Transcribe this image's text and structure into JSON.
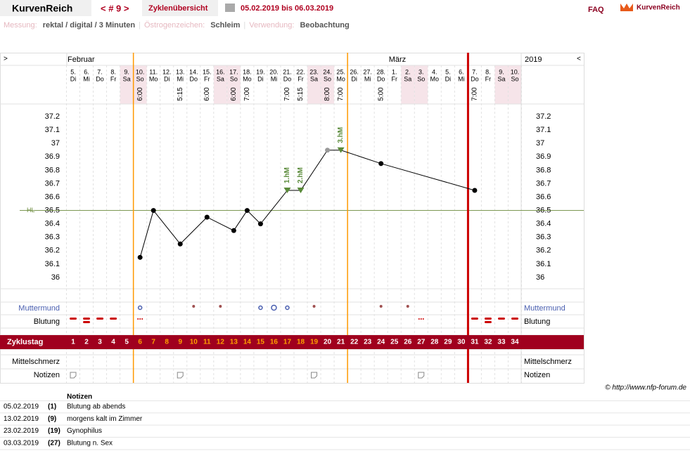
{
  "header": {
    "brand": "KurvenReich",
    "cycle": "< # 9 >",
    "overview": "Zyklenübersicht",
    "range": "05.02.2019 bis 06.03.2019",
    "faq": "FAQ",
    "logo": "KurvenReich"
  },
  "info": [
    {
      "label": "Messung:",
      "value": "rektal / digital / 3 Minuten"
    },
    {
      "label": "Östrogenzeichen:",
      "value": "Schleim"
    },
    {
      "label": "Verwendung:",
      "value": "Beobachtung"
    }
  ],
  "separator": "|",
  "nav": {
    "left": ">",
    "right": "<",
    "year": "2019"
  },
  "chart_data": {
    "type": "line",
    "months": [
      {
        "label": "Februar",
        "day": 1
      },
      {
        "label": "März",
        "day": 25
      }
    ],
    "categories": [
      "5.",
      "6.",
      "7.",
      "8.",
      "9.",
      "10.",
      "11.",
      "12.",
      "13.",
      "14.",
      "15.",
      "16.",
      "17.",
      "18.",
      "19.",
      "20.",
      "21.",
      "22.",
      "23.",
      "24.",
      "25.",
      "26.",
      "27.",
      "28.",
      "1.",
      "2.",
      "3.",
      "4.",
      "5.",
      "6.",
      "7.",
      "8.",
      "9.",
      "10."
    ],
    "weekdays": [
      "Di",
      "Mi",
      "Do",
      "Fr",
      "Sa",
      "So",
      "Mo",
      "Di",
      "Mi",
      "Do",
      "Fr",
      "Sa",
      "So",
      "Mo",
      "Di",
      "Mi",
      "Do",
      "Fr",
      "Sa",
      "So",
      "Mo",
      "Di",
      "Mi",
      "Do",
      "Fr",
      "Sa",
      "So",
      "Mo",
      "Di",
      "Mi",
      "Do",
      "Fr",
      "Sa",
      "So"
    ],
    "times": [
      null,
      null,
      null,
      null,
      null,
      "6:00",
      null,
      null,
      "5:15",
      null,
      "6:00",
      null,
      "6:00",
      "7:00",
      null,
      null,
      "7:00",
      "5:15",
      null,
      "8:00",
      "7:00",
      null,
      null,
      "5:00",
      null,
      null,
      null,
      null,
      null,
      null,
      "7:00",
      null,
      null,
      null
    ],
    "values": [
      null,
      null,
      null,
      null,
      null,
      36.15,
      36.5,
      null,
      36.25,
      null,
      36.45,
      null,
      36.35,
      36.5,
      36.4,
      null,
      36.65,
      36.65,
      null,
      36.95,
      36.95,
      null,
      null,
      36.85,
      null,
      null,
      null,
      null,
      null,
      null,
      36.65,
      null,
      null,
      null
    ],
    "ylim": [
      35.9,
      37.3
    ],
    "yticks": [
      36,
      36.1,
      36.2,
      36.3,
      36.4,
      36.5,
      36.6,
      36.7,
      36.8,
      36.9,
      37,
      37.1,
      37.2
    ],
    "grid": false,
    "color": "#000000",
    "excluded_days": [
      20
    ],
    "excluded_color": "#999999",
    "hl": {
      "label": "HL",
      "value": 36.5,
      "color": "#6a8a3a"
    },
    "annotations": [
      {
        "text": "1.hM",
        "day": 17
      },
      {
        "text": "2.hM",
        "day": 18
      },
      {
        "text": "3.hM",
        "day": 21
      }
    ],
    "annotation_color": "#5a8a3a",
    "cycle_lines": [
      {
        "x": 5.5,
        "color": "#ff9900"
      },
      {
        "x": 21.5,
        "color": "#ff9900"
      },
      {
        "x": 30.5,
        "color": "#cc0000"
      }
    ],
    "rows": {
      "muttermund": "Muttermund",
      "blutung": "Blutung",
      "zyklustag": "Zyklustag",
      "mittelschmerz": "Mittelschmerz",
      "notizen": "Notizen"
    },
    "zyklustag": [
      1,
      2,
      3,
      4,
      5,
      6,
      7,
      8,
      9,
      10,
      11,
      12,
      13,
      14,
      15,
      16,
      17,
      18,
      19,
      20,
      21,
      22,
      23,
      24,
      25,
      26,
      27,
      28,
      29,
      30,
      31,
      32,
      33,
      34
    ],
    "highlight": {
      "from": 6,
      "to": 19,
      "color": "#ffa000"
    }
  },
  "notes": {
    "title": "Notizen",
    "rows": [
      {
        "date": "05.02.2019",
        "day": {
          "value": 1,
          "label": "(1)"
        },
        "text": "Blutung ab abends"
      },
      {
        "date": "13.02.2019",
        "day": {
          "value": 9,
          "label": "(9)"
        },
        "text": "morgens kalt im Zimmer"
      },
      {
        "date": "23.02.2019",
        "day": {
          "value": 19,
          "label": "(19)"
        },
        "text": "Gynophilus"
      },
      {
        "date": "03.03.2019",
        "day": {
          "value": 27,
          "label": "(27)"
        },
        "text": "Blutung n. Sex"
      }
    ]
  },
  "copyright": "© http://www.nfp-forum.de"
}
